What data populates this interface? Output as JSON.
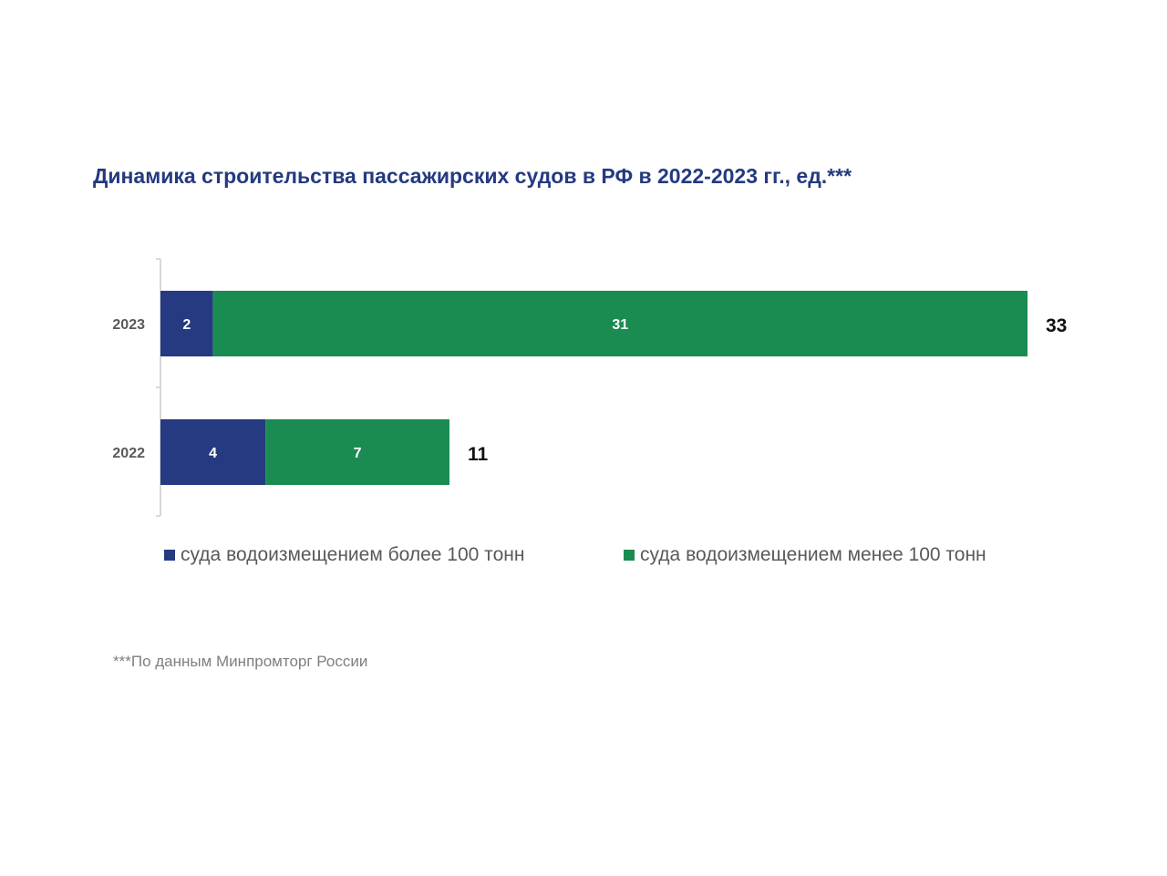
{
  "colors": {
    "title": "#243a80",
    "series_blue": "#253a80",
    "series_green": "#1a8c52",
    "axis": "#d9d9d9",
    "category_label": "#595959",
    "total_label": "#111111",
    "bar_label": "#ffffff"
  },
  "chart_data": {
    "type": "bar",
    "orientation": "horizontal",
    "stacked": true,
    "title": "Динамика строительства пассажирских судов в РФ в 2022-2023 гг., ед.***",
    "categories": [
      "2023",
      "2022"
    ],
    "series": [
      {
        "name": "суда водоизмещением более 100 тонн",
        "values": [
          2,
          4
        ],
        "color": "#253a80"
      },
      {
        "name": "суда водоизмещением менее 100 тонн",
        "values": [
          31,
          7
        ],
        "color": "#1a8c52"
      }
    ],
    "totals": [
      33,
      11
    ],
    "xlim": [
      0,
      33
    ],
    "grid": false,
    "legend": "bottom",
    "source_note": "***По данным Минпромторг России"
  }
}
